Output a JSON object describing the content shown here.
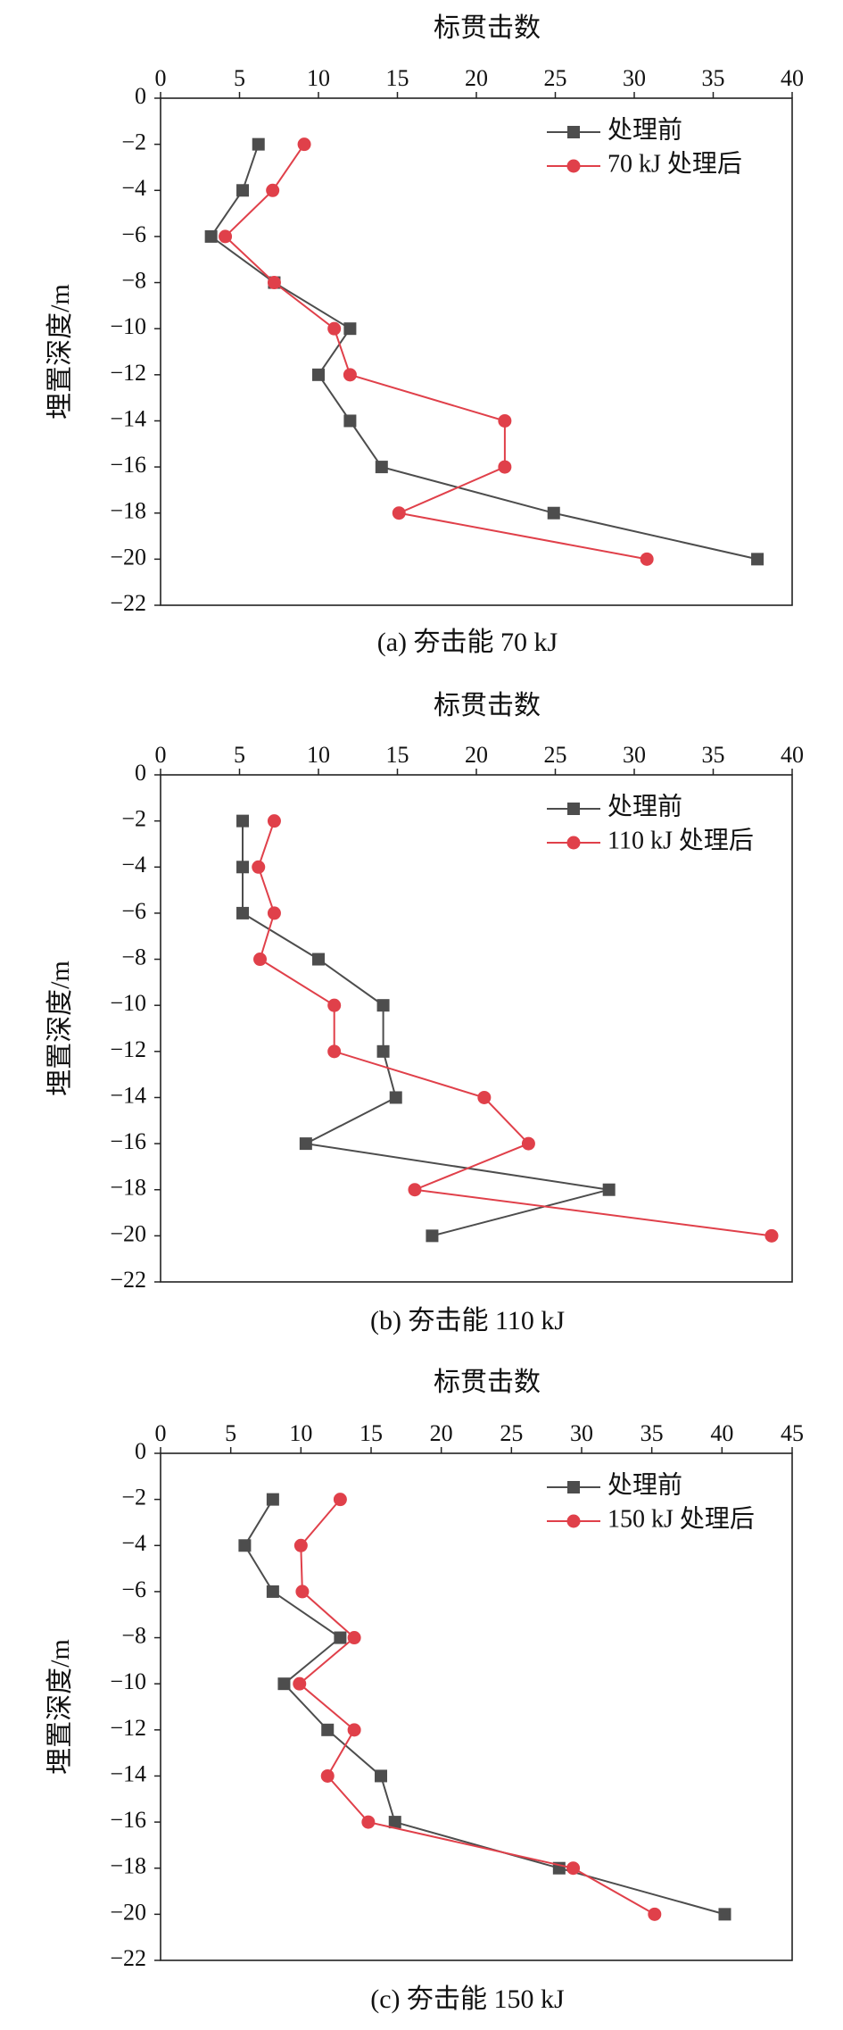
{
  "figure": {
    "ylabel": "埋置深度/m",
    "xlabel": "标贯击数"
  },
  "chart_data": [
    {
      "type": "line",
      "caption": "(a) 夯击能 70 kJ",
      "xlabel": "标贯击数",
      "ylabel": "埋置深度/m",
      "xlim": [
        0,
        40
      ],
      "xticks": [
        0,
        5,
        10,
        15,
        20,
        25,
        30,
        35,
        40
      ],
      "ylim": [
        -22,
        0
      ],
      "yticks": [
        0,
        -2,
        -4,
        -6,
        -8,
        -10,
        -12,
        -14,
        -16,
        -18,
        -20,
        -22
      ],
      "x_axis_position": "top",
      "grid": false,
      "legend_position": "top-right",
      "series": [
        {
          "name": "处理前",
          "color": "#4d4d4d",
          "marker": "square",
          "x": [
            6.2,
            5.2,
            3.2,
            7.2,
            12.0,
            10.0,
            12.0,
            14.0,
            24.9,
            37.8
          ],
          "y": [
            -2,
            -4,
            -6,
            -8,
            -10,
            -12,
            -14,
            -16,
            -18,
            -20
          ]
        },
        {
          "name": "70 kJ 处理后",
          "color": "#e0404a",
          "marker": "circle",
          "x": [
            9.1,
            7.1,
            4.1,
            7.2,
            11.0,
            12.0,
            21.8,
            21.8,
            15.1,
            30.8
          ],
          "y": [
            -2,
            -4,
            -6,
            -8,
            -10,
            -12,
            -14,
            -16,
            -18,
            -20
          ]
        }
      ]
    },
    {
      "type": "line",
      "caption": "(b) 夯击能 110 kJ",
      "xlabel": "标贯击数",
      "ylabel": "埋置深度/m",
      "xlim": [
        0,
        40
      ],
      "xticks": [
        0,
        5,
        10,
        15,
        20,
        25,
        30,
        35,
        40
      ],
      "ylim": [
        -22,
        0
      ],
      "yticks": [
        0,
        -2,
        -4,
        -6,
        -8,
        -10,
        -12,
        -14,
        -16,
        -18,
        -20,
        -22
      ],
      "x_axis_position": "top",
      "grid": false,
      "legend_position": "top-right",
      "series": [
        {
          "name": "处理前",
          "color": "#4d4d4d",
          "marker": "square",
          "x": [
            5.2,
            5.2,
            5.2,
            10.0,
            14.1,
            14.1,
            14.9,
            9.2,
            28.4,
            17.2
          ],
          "y": [
            -2,
            -4,
            -6,
            -8,
            -10,
            -12,
            -14,
            -16,
            -18,
            -20
          ]
        },
        {
          "name": "110 kJ 处理后",
          "color": "#e0404a",
          "marker": "circle",
          "x": [
            7.2,
            6.2,
            7.2,
            6.3,
            11.0,
            11.0,
            20.5,
            23.3,
            16.1,
            38.7
          ],
          "y": [
            -2,
            -4,
            -6,
            -8,
            -10,
            -12,
            -14,
            -16,
            -18,
            -20
          ]
        }
      ]
    },
    {
      "type": "line",
      "caption": "(c) 夯击能 150 kJ",
      "xlabel": "标贯击数",
      "ylabel": "埋置深度/m",
      "xlim": [
        0,
        45
      ],
      "xticks": [
        0,
        5,
        10,
        15,
        20,
        25,
        30,
        35,
        40,
        45
      ],
      "ylim": [
        -22,
        0
      ],
      "yticks": [
        0,
        -2,
        -4,
        -6,
        -8,
        -10,
        -12,
        -14,
        -16,
        -18,
        -20,
        -22
      ],
      "x_axis_position": "top",
      "grid": false,
      "legend_position": "top-right",
      "series": [
        {
          "name": "处理前",
          "color": "#4d4d4d",
          "marker": "square",
          "x": [
            8.0,
            6.0,
            8.0,
            12.8,
            8.8,
            11.9,
            15.7,
            16.7,
            28.4,
            40.2
          ],
          "y": [
            -2,
            -4,
            -6,
            -8,
            -10,
            -12,
            -14,
            -16,
            -18,
            -20
          ]
        },
        {
          "name": "150 kJ 处理后",
          "color": "#e0404a",
          "marker": "circle",
          "x": [
            12.8,
            10.0,
            10.1,
            13.8,
            9.9,
            13.8,
            11.9,
            14.8,
            29.4,
            35.2
          ],
          "y": [
            -2,
            -4,
            -6,
            -8,
            -10,
            -12,
            -14,
            -16,
            -18,
            -20
          ]
        }
      ]
    }
  ]
}
